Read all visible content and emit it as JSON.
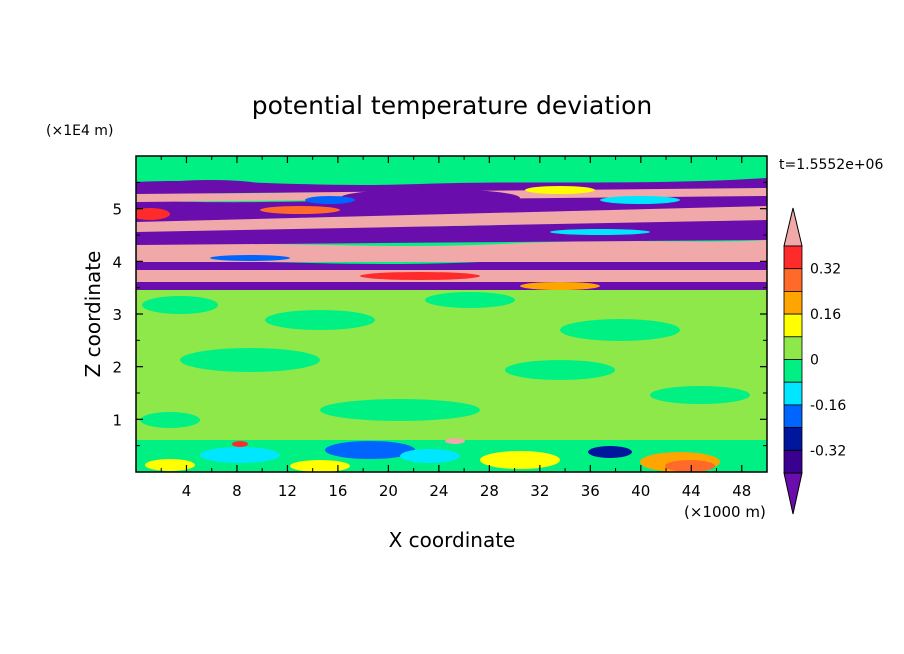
{
  "chart_data": {
    "type": "heatmap",
    "title": "potential temperature deviation",
    "xlabel": "X coordinate",
    "ylabel": "Z coordinate",
    "x_unit": "(×1000 m)",
    "y_unit": "(×1E4 m)",
    "time_label": "t=1.5552e+06",
    "xlim": [
      0,
      50
    ],
    "ylim": [
      0,
      6
    ],
    "x_ticks": [
      4,
      8,
      12,
      16,
      20,
      24,
      28,
      32,
      36,
      40,
      44,
      48
    ],
    "y_ticks": [
      1,
      2,
      3,
      4,
      5
    ],
    "colorbar": {
      "levels": [
        -0.4,
        -0.32,
        -0.24,
        -0.16,
        -0.08,
        0,
        0.08,
        0.16,
        0.24,
        0.32,
        0.4
      ],
      "labels": [
        "-0.32",
        "-0.16",
        "0",
        "0.16",
        "0.32"
      ],
      "label_values": [
        -0.32,
        -0.16,
        0,
        0.16,
        0.32
      ],
      "colors": [
        "#6a0dad",
        "#3a0090",
        "#00169c",
        "#0064ff",
        "#00e6ff",
        "#00f084",
        "#8ee84a",
        "#ffff00",
        "#ffa500",
        "#ff6a2a",
        "#ff2a2a",
        "#f0a8a8"
      ]
    },
    "layers": [
      {
        "z": [
          0.0,
          0.6
        ],
        "desc_level": 0
      },
      {
        "z": [
          0.6,
          3.5
        ],
        "desc_level": 0.04
      },
      {
        "z": [
          3.55,
          3.7
        ],
        "desc_level": -0.4
      },
      {
        "z": [
          3.7,
          3.9
        ],
        "desc_level": 0.4
      },
      {
        "z": [
          3.9,
          4.05
        ],
        "desc_level": -0.4
      },
      {
        "z": [
          4.05,
          4.35
        ],
        "desc_level": 0.4
      },
      {
        "z": [
          4.35,
          4.6
        ],
        "desc_level": -0.4
      },
      {
        "z": [
          4.6,
          4.85
        ],
        "desc_level": 0.4
      },
      {
        "z": [
          4.85,
          5.1
        ],
        "desc_level": -0.4
      },
      {
        "z": [
          5.1,
          5.3
        ],
        "desc_level": 0.4
      },
      {
        "z": [
          5.3,
          5.55
        ],
        "desc_level": -0.4
      },
      {
        "z": [
          5.55,
          6.0
        ],
        "desc_level": 0
      }
    ]
  }
}
